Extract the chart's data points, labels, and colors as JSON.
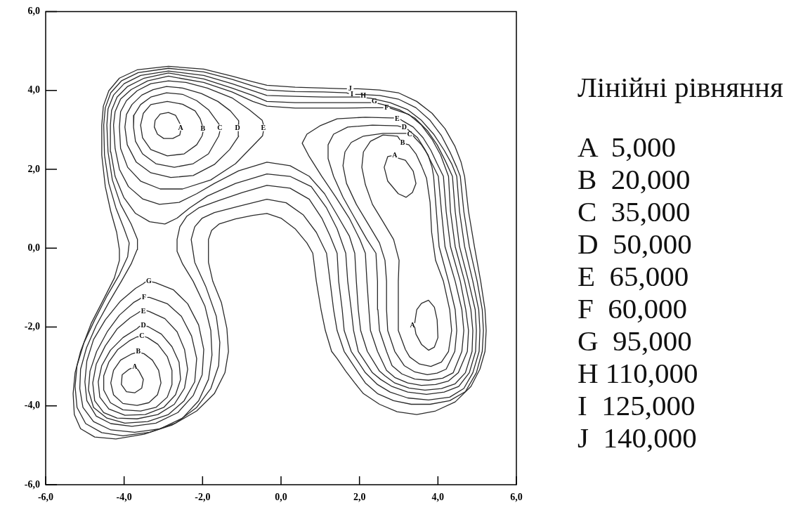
{
  "chart_data": {
    "type": "line",
    "marker": "none",
    "line_style": "solid",
    "xlim": [
      -6,
      6
    ],
    "ylim": [
      -6,
      6
    ],
    "xticks": [
      {
        "value": -6,
        "label": "-6,0"
      },
      {
        "value": -4,
        "label": "-4,0"
      },
      {
        "value": -2,
        "label": "-2,0"
      },
      {
        "value": 0,
        "label": "0,0"
      },
      {
        "value": 2,
        "label": "2,0"
      },
      {
        "value": 4,
        "label": "4,0"
      },
      {
        "value": 6,
        "label": "6,0"
      }
    ],
    "yticks": [
      {
        "value": -6,
        "label": "-6,0"
      },
      {
        "value": -4,
        "label": "-4,0"
      },
      {
        "value": -2,
        "label": "-2,0"
      },
      {
        "value": 0,
        "label": "0,0"
      },
      {
        "value": 2,
        "label": "2,0"
      },
      {
        "value": 4,
        "label": "4,0"
      },
      {
        "value": 6,
        "label": "6,0"
      }
    ],
    "series": [
      {
        "color": "#2a2a2a",
        "x": [
          -2.58,
          -2.62,
          -2.69,
          -2.87,
          -3.08,
          -3.21,
          -3.23,
          -3.15,
          -2.99,
          -2.76,
          -2.58,
          -2.56
        ],
        "values": [
          3.16,
          3.24,
          3.37,
          3.44,
          3.4,
          3.24,
          3.07,
          2.89,
          2.78,
          2.78,
          2.87,
          2.97
        ]
      },
      {
        "color": "#2a2a2a",
        "x": [
          -3.66,
          -3.62,
          -3.51,
          -3.55,
          -3.73,
          -3.94,
          -4.07,
          -4.05,
          -3.87,
          -3.82
        ],
        "values": [
          -3.07,
          -3.12,
          -3.33,
          -3.55,
          -3.67,
          -3.64,
          -3.46,
          -3.21,
          -3.07,
          -3.05
        ]
      },
      {
        "color": "#2a2a2a",
        "x": [
          2.99,
          3.17,
          3.37,
          3.44,
          3.35,
          3.19,
          2.99,
          2.72,
          2.63,
          2.72,
          2.81
        ],
        "values": [
          2.28,
          2.23,
          1.95,
          1.64,
          1.41,
          1.29,
          1.38,
          1.7,
          2.05,
          2.32,
          2.34
        ]
      },
      {
        "color": "#2a2a2a",
        "x": [
          3.41,
          3.46,
          3.58,
          3.76,
          3.91,
          3.98,
          4.0,
          3.91,
          3.76,
          3.58,
          3.44,
          3.41
        ],
        "values": [
          -1.89,
          -1.56,
          -1.4,
          -1.32,
          -1.5,
          -1.82,
          -2.27,
          -2.51,
          -2.59,
          -2.44,
          -2.18,
          -2.01
        ]
      },
      {
        "color": "#2a2a2a",
        "x": [
          -2.01,
          -2.06,
          -2.19,
          -2.51,
          -2.9,
          -3.32,
          -3.51,
          -3.58,
          -3.53,
          -3.32,
          -2.9,
          -2.47,
          -2.15,
          -2.01,
          -1.99
        ],
        "values": [
          3.12,
          3.28,
          3.48,
          3.65,
          3.72,
          3.64,
          3.42,
          3.12,
          2.8,
          2.5,
          2.34,
          2.39,
          2.62,
          2.85,
          2.94
        ]
      },
      {
        "color": "#2a2a2a",
        "x": [
          -3.55,
          -3.49,
          -3.28,
          -3.12,
          -3.06,
          -3.15,
          -3.37,
          -3.67,
          -4.03,
          -4.27,
          -4.34,
          -4.27,
          -4.09,
          -3.82,
          -3.73
        ],
        "values": [
          -2.66,
          -2.68,
          -2.84,
          -3.1,
          -3.42,
          -3.72,
          -3.92,
          -3.99,
          -3.94,
          -3.72,
          -3.42,
          -3.1,
          -2.84,
          -2.69,
          -2.66
        ]
      },
      {
        "color": "#2a2a2a",
        "x": [
          3.19,
          3.26,
          3.44,
          3.58,
          3.71,
          3.8,
          3.84,
          3.94,
          4.14,
          4.3,
          4.35,
          4.27,
          4.09,
          3.82,
          3.53,
          3.28,
          3.17,
          2.99,
          2.99,
          3.01,
          2.87,
          2.6,
          2.33,
          2.15,
          2.06,
          2.1,
          2.28,
          2.6,
          2.97,
          3.03
        ],
        "values": [
          2.64,
          2.62,
          2.39,
          2.09,
          1.77,
          1.16,
          0.4,
          -0.31,
          -0.84,
          -1.56,
          -2.09,
          -2.62,
          -2.89,
          -3.0,
          -2.94,
          -2.76,
          -2.57,
          -2.09,
          -0.84,
          -0.31,
          0.22,
          0.67,
          1.11,
          1.61,
          2.05,
          2.44,
          2.71,
          2.87,
          2.84,
          2.75
        ]
      },
      {
        "color": "#2a2a2a",
        "x": [
          -1.58,
          -1.65,
          -1.85,
          -2.15,
          -2.51,
          -2.92,
          -3.32,
          -3.58,
          -3.75,
          -3.76,
          -3.71,
          -3.53,
          -3.19,
          -2.72,
          -2.24,
          -1.85,
          -1.59,
          -1.56
        ],
        "values": [
          3.14,
          3.24,
          3.51,
          3.74,
          3.9,
          3.94,
          3.83,
          3.64,
          3.37,
          3.07,
          2.71,
          2.39,
          2.14,
          2.05,
          2.14,
          2.39,
          2.84,
          2.96
        ]
      },
      {
        "color": "#2a2a2a",
        "x": [
          -3.46,
          -3.4,
          -3.14,
          -2.9,
          -2.78,
          -2.78,
          -2.9,
          -3.19,
          -3.58,
          -4.03,
          -4.35,
          -4.52,
          -4.52,
          -4.39,
          -4.16,
          -3.85,
          -3.67,
          -3.64
        ],
        "values": [
          -2.25,
          -2.27,
          -2.44,
          -2.75,
          -3.1,
          -3.46,
          -3.78,
          -4.04,
          -4.13,
          -4.1,
          -3.92,
          -3.6,
          -3.24,
          -2.89,
          -2.57,
          -2.34,
          -2.25,
          -2.25
        ]
      },
      {
        "color": "#2a2a2a",
        "x": [
          3.37,
          3.41,
          3.58,
          3.75,
          3.85,
          3.89,
          3.96,
          4.03,
          4.27,
          4.44,
          4.48,
          4.43,
          4.21,
          3.98,
          3.73,
          3.41,
          3.14,
          2.9,
          2.72,
          2.69,
          2.69,
          2.65,
          2.51,
          2.24,
          1.92,
          1.67,
          1.58,
          1.63,
          1.79,
          2.1,
          2.6,
          3.15,
          3.19
        ],
        "values": [
          2.85,
          2.8,
          2.62,
          2.36,
          2.05,
          1.82,
          0.93,
          0.04,
          -0.84,
          -1.56,
          -2.09,
          -2.62,
          -3.07,
          -3.17,
          -3.21,
          -3.14,
          -2.98,
          -2.62,
          -2.09,
          -1.56,
          -0.84,
          -0.31,
          0.13,
          0.58,
          1.11,
          1.64,
          2.09,
          2.44,
          2.68,
          2.84,
          2.91,
          2.91,
          2.91
        ]
      },
      {
        "color": "#2a2a2a",
        "x": [
          -1.09,
          -1.08,
          -1.29,
          -1.61,
          -2.03,
          -2.51,
          -2.92,
          -3.26,
          -3.55,
          -3.8,
          -3.94,
          -3.98,
          -3.92,
          -3.69,
          -3.32,
          -2.81,
          -2.24,
          -1.7,
          -1.31,
          -1.08,
          -1.09
        ],
        "values": [
          3.14,
          3.23,
          3.48,
          3.72,
          3.92,
          4.06,
          4.1,
          4.02,
          3.88,
          3.64,
          3.39,
          3.07,
          2.62,
          2.18,
          1.91,
          1.79,
          1.84,
          2.12,
          2.5,
          2.84,
          2.96
        ]
      },
      {
        "color": "#2a2a2a",
        "x": [
          -3.42,
          -3.37,
          -3.05,
          -2.78,
          -2.6,
          -2.56,
          -2.69,
          -2.99,
          -3.46,
          -3.98,
          -4.39,
          -4.62,
          -4.66,
          -4.57,
          -4.35,
          -4.03,
          -3.67,
          -3.6
        ],
        "values": [
          -1.98,
          -2.0,
          -2.18,
          -2.5,
          -2.89,
          -3.33,
          -3.72,
          -4.04,
          -4.22,
          -4.24,
          -4.08,
          -3.78,
          -3.39,
          -2.98,
          -2.59,
          -2.27,
          -2.04,
          -1.98
        ]
      },
      {
        "color": "#2a2a2a",
        "x": [
          3.23,
          3.48,
          3.67,
          3.85,
          4.01,
          4.09,
          4.18,
          4.44,
          4.61,
          4.66,
          4.61,
          4.39,
          4.12,
          3.76,
          3.41,
          3.08,
          2.83,
          2.69,
          2.51,
          2.47,
          2.46,
          2.42,
          2.19,
          1.88,
          1.58,
          1.34,
          1.2,
          1.2,
          1.34,
          1.7,
          2.33,
          2.97,
          3.05
        ],
        "values": [
          3.01,
          2.8,
          2.5,
          2.14,
          1.82,
          0.93,
          0.04,
          -0.84,
          -1.56,
          -2.09,
          -2.62,
          -3.16,
          -3.3,
          -3.35,
          -3.32,
          -3.19,
          -2.98,
          -2.62,
          -2.09,
          -1.56,
          -0.84,
          -0.13,
          0.22,
          0.76,
          1.29,
          1.82,
          2.27,
          2.62,
          2.89,
          3.07,
          3.12,
          3.1,
          3.08
        ]
      },
      {
        "color": "#2a2a2a",
        "x": [
          -0.45,
          -0.48,
          -0.81,
          -1.25,
          -1.88,
          -2.42,
          -2.87,
          -3.32,
          -3.67,
          -3.94,
          -4.09,
          -4.12,
          -4.09,
          -3.91,
          -3.58,
          -3.08,
          -2.51,
          -1.79,
          -1.16,
          -0.72,
          -0.47,
          -0.45
        ],
        "values": [
          3.14,
          3.24,
          3.51,
          3.81,
          4.06,
          4.2,
          4.24,
          4.17,
          3.99,
          3.74,
          3.46,
          3.07,
          2.53,
          2.05,
          1.7,
          1.5,
          1.5,
          1.73,
          2.14,
          2.59,
          2.85,
          2.96
        ]
      },
      {
        "color": "#2a2a2a",
        "x": [
          -3.42,
          -3.35,
          -2.96,
          -2.65,
          -2.46,
          -2.38,
          -2.46,
          -2.72,
          -3.14,
          -3.67,
          -4.18,
          -4.52,
          -4.75,
          -4.8,
          -4.71,
          -4.48,
          -4.18,
          -3.85,
          -3.64,
          -3.6
        ],
        "values": [
          -1.59,
          -1.61,
          -1.79,
          -2.12,
          -2.57,
          -3.07,
          -3.55,
          -3.96,
          -4.22,
          -4.33,
          -4.31,
          -4.17,
          -3.87,
          -3.42,
          -2.94,
          -2.48,
          -2.05,
          -1.77,
          -1.64,
          -1.61
        ]
      },
      {
        "color": "#2a2a2a",
        "x": [
          3.05,
          3.08,
          3.37,
          3.62,
          3.82,
          3.98,
          4.14,
          4.21,
          4.32,
          4.57,
          4.71,
          4.78,
          4.75,
          4.52,
          4.27,
          3.94,
          3.58,
          3.23,
          2.9,
          2.69,
          2.46,
          2.28,
          2.24,
          2.19,
          2.15,
          2.01,
          1.74,
          1.4,
          1.04,
          0.72,
          0.54,
          0.66,
          0.99,
          1.43,
          2.15,
          2.81,
          2.87
        ],
        "values": [
          3.26,
          3.24,
          3.07,
          2.8,
          2.48,
          2.14,
          1.82,
          0.93,
          0.04,
          -0.84,
          -1.56,
          -2.09,
          -2.62,
          -3.16,
          -3.37,
          -3.46,
          -3.48,
          -3.42,
          -3.28,
          -3.1,
          -2.62,
          -2.09,
          -1.56,
          -0.84,
          -0.13,
          0.22,
          0.76,
          1.29,
          1.82,
          2.32,
          2.66,
          2.89,
          3.1,
          3.28,
          3.32,
          3.3,
          3.3
        ]
      },
      {
        "color": "#2a2a2a",
        "x": [
          2.78,
          2.9,
          3.26,
          3.58,
          3.85,
          4.07,
          4.27,
          4.32,
          4.44,
          4.68,
          4.84,
          4.89,
          4.87,
          4.7,
          4.44,
          4.09,
          3.67,
          3.26,
          2.9,
          2.65,
          2.51,
          2.2,
          2.03,
          1.97,
          1.92,
          1.88,
          1.74,
          1.43,
          1.11,
          0.72,
          0.23,
          -0.36,
          -1.08,
          -1.7,
          -2.15,
          -2.6,
          -3.1,
          -3.53,
          -3.89,
          -4.12,
          -4.23,
          -4.27,
          -4.23,
          -4.09,
          -3.82,
          -3.4,
          -2.87,
          -1.97,
          -1.25,
          -0.72,
          -0.36,
          0.36,
          1.08,
          1.61,
          2.15,
          2.53,
          2.6
        ],
        "values": [
          3.55,
          3.51,
          3.39,
          3.12,
          2.76,
          2.36,
          1.82,
          0.93,
          0.04,
          -0.84,
          -1.56,
          -2.09,
          -2.62,
          -3.16,
          -3.44,
          -3.56,
          -3.6,
          -3.55,
          -3.42,
          -3.24,
          -3.12,
          -2.62,
          -2.09,
          -1.56,
          -0.84,
          -0.13,
          0.31,
          0.84,
          1.38,
          1.82,
          2.09,
          2.18,
          1.96,
          1.64,
          1.38,
          1.16,
          1.11,
          1.25,
          1.56,
          2.0,
          2.53,
          3.12,
          3.46,
          3.78,
          4.02,
          4.24,
          4.36,
          4.2,
          3.96,
          3.72,
          3.6,
          3.55,
          3.55,
          3.55,
          3.56,
          3.56,
          3.56
        ]
      },
      {
        "color": "#2a2a2a",
        "x": [
          -3.4,
          -3.35,
          -2.9,
          -2.54,
          -2.28,
          -2.15,
          -2.2,
          -2.47,
          -2.87,
          -3.4,
          -3.98,
          -4.44,
          -4.78,
          -4.91,
          -4.87,
          -4.7,
          -4.43,
          -4.12,
          -3.76,
          -3.6,
          -3.58
        ],
        "values": [
          -1.25,
          -1.25,
          -1.41,
          -1.73,
          -2.23,
          -2.8,
          -3.39,
          -3.87,
          -4.22,
          -4.4,
          -4.44,
          -4.31,
          -4.04,
          -3.6,
          -3.12,
          -2.62,
          -2.12,
          -1.7,
          -1.38,
          -1.29,
          -1.27
        ]
      },
      {
        "color": "#2a2a2a",
        "x": [
          2.47,
          2.6,
          3.01,
          3.41,
          3.73,
          3.98,
          4.19,
          4.37,
          4.44,
          4.55,
          4.78,
          4.95,
          4.98,
          4.96,
          4.8,
          4.53,
          4.16,
          3.71,
          3.23,
          2.83,
          2.54,
          2.33,
          1.97,
          1.85,
          1.79,
          1.7,
          1.65,
          1.43,
          1.16,
          0.77,
          0.23,
          -0.36,
          -1.16,
          -1.88,
          -2.33,
          -2.65,
          -2.96,
          -3.35,
          -3.71,
          -4.01,
          -4.23,
          -4.34,
          -4.35,
          -4.32,
          -4.18,
          -3.91,
          -3.49,
          -2.87,
          -1.97,
          -1.25,
          -0.72,
          -0.36,
          0.36,
          1.08,
          1.61,
          2.17,
          2.29
        ],
        "values": [
          3.67,
          3.64,
          3.51,
          3.3,
          2.98,
          2.62,
          2.21,
          1.82,
          0.93,
          0.04,
          -0.84,
          -1.56,
          -2.09,
          -2.62,
          -3.16,
          -3.51,
          -3.65,
          -3.71,
          -3.65,
          -3.51,
          -3.33,
          -3.16,
          -2.62,
          -2.09,
          -1.56,
          -0.84,
          -0.13,
          0.49,
          1.02,
          1.56,
          1.82,
          1.88,
          1.64,
          1.32,
          1.02,
          0.76,
          0.61,
          0.67,
          0.88,
          1.29,
          1.82,
          2.44,
          3.12,
          3.49,
          3.83,
          4.1,
          4.31,
          4.44,
          4.29,
          4.06,
          3.87,
          3.72,
          3.69,
          3.69,
          3.69,
          3.69,
          3.69
        ]
      },
      {
        "color": "#2a2a2a",
        "x": [
          -3.28,
          -3.19,
          -2.74,
          -2.38,
          -2.1,
          -1.97,
          -2.01,
          -2.24,
          -2.63,
          -3.19,
          -3.8,
          -4.34,
          -4.71,
          -4.95,
          -5.0,
          -4.95,
          -4.78,
          -4.48,
          -4.09,
          -3.71,
          -3.51,
          -3.46
        ],
        "values": [
          -0.86,
          -0.88,
          -1.06,
          -1.41,
          -1.95,
          -2.57,
          -3.21,
          -3.74,
          -4.17,
          -4.44,
          -4.52,
          -4.45,
          -4.26,
          -3.87,
          -3.39,
          -2.86,
          -2.32,
          -1.82,
          -1.34,
          -1.02,
          -0.9,
          -0.86
        ]
      },
      {
        "color": "#2a2a2a",
        "x": [
          2.19,
          2.29,
          2.78,
          3.23,
          3.58,
          3.89,
          4.16,
          4.35,
          4.48,
          4.55,
          4.68,
          4.89,
          5.04,
          5.07,
          5.05,
          4.89,
          4.66,
          4.3,
          3.76,
          3.23,
          2.78,
          2.46,
          2.15,
          1.79,
          1.61,
          1.56,
          1.47,
          1.43,
          1.25,
          1.04,
          0.72,
          0.23,
          -0.36,
          -0.99,
          -1.61,
          -2.1,
          -2.4,
          -2.58,
          -2.65,
          -2.65,
          -2.51,
          -2.24,
          -1.94,
          -1.79,
          -1.76,
          -1.85,
          -2.1,
          -2.51,
          -3.08,
          -3.73,
          -4.34,
          -4.78,
          -5.05,
          -5.13,
          -5.11,
          -4.96,
          -4.71,
          -4.39,
          -4.07,
          -3.82,
          -3.67,
          -3.66,
          -3.82,
          -4.09,
          -4.3,
          -4.41,
          -4.44,
          -4.41,
          -4.27,
          -4.0,
          -3.58,
          -2.87,
          -1.97,
          -1.25,
          -0.72,
          -0.36,
          0.36,
          1.08,
          1.43,
          1.9,
          2.01
        ],
        "values": [
          3.81,
          3.8,
          3.69,
          3.51,
          3.24,
          2.89,
          2.48,
          2.14,
          1.82,
          0.93,
          0.04,
          -0.84,
          -1.56,
          -2.09,
          -2.62,
          -3.16,
          -3.56,
          -3.78,
          -3.85,
          -3.8,
          -3.65,
          -3.46,
          -3.16,
          -2.62,
          -2.09,
          -1.56,
          -0.84,
          -0.13,
          0.31,
          0.76,
          1.24,
          1.52,
          1.59,
          1.41,
          1.2,
          1.02,
          0.81,
          0.54,
          0.22,
          -0.08,
          -0.4,
          -0.84,
          -1.47,
          -2.09,
          -2.71,
          -3.33,
          -3.87,
          -4.31,
          -4.58,
          -4.67,
          -4.61,
          -4.4,
          -4.04,
          -3.56,
          -3.07,
          -2.53,
          -1.96,
          -1.38,
          -0.84,
          -0.4,
          -0.04,
          0.22,
          0.61,
          1.11,
          1.73,
          2.44,
          3.12,
          3.53,
          3.88,
          4.17,
          4.38,
          4.49,
          4.38,
          4.17,
          3.99,
          3.87,
          3.85,
          3.83,
          3.83,
          3.83,
          3.83
        ]
      },
      {
        "color": "#2a2a2a",
        "x": [
          1.9,
          2.01,
          2.51,
          2.99,
          3.44,
          3.8,
          4.09,
          4.32,
          4.48,
          4.57,
          4.66,
          4.8,
          5.0,
          5.13,
          5.16,
          5.13,
          4.98,
          4.7,
          4.3,
          3.8,
          3.32,
          2.87,
          2.46,
          2.15,
          1.97,
          1.61,
          1.43,
          1.34,
          1.25,
          1.16,
          0.9,
          0.57,
          0.13,
          -0.36,
          -1.08,
          -1.7,
          -2.01,
          -2.2,
          -2.29,
          -2.2,
          -1.92,
          -1.65,
          -1.56,
          -1.59,
          -1.79,
          -2.15,
          -2.69,
          -3.35,
          -4.03,
          -4.57,
          -4.98,
          -5.2,
          -5.25,
          -5.2,
          -5.02,
          -4.75,
          -4.43,
          -4.12,
          -3.91,
          -3.87,
          -4.0,
          -4.21,
          -4.39,
          -4.5,
          -4.52,
          -4.48,
          -4.34,
          -4.07,
          -3.64,
          -2.87,
          -1.97,
          -1.25,
          -0.72,
          -0.36,
          0.36,
          1.08,
          1.67,
          1.72
        ],
        "values": [
          3.9,
          3.9,
          3.87,
          3.78,
          3.56,
          3.24,
          2.85,
          2.41,
          2.05,
          1.82,
          0.93,
          0.04,
          -0.84,
          -1.56,
          -2.09,
          -2.62,
          -3.16,
          -3.64,
          -3.87,
          -3.96,
          -3.96,
          -3.87,
          -3.69,
          -3.42,
          -3.16,
          -2.62,
          -2.09,
          -1.56,
          -0.84,
          -0.13,
          0.4,
          0.84,
          1.15,
          1.24,
          1.06,
          0.9,
          0.76,
          0.54,
          0.22,
          -0.36,
          -0.97,
          -1.73,
          -2.39,
          -2.98,
          -3.56,
          -4.04,
          -4.44,
          -4.67,
          -4.76,
          -4.68,
          -4.45,
          -4.04,
          -3.51,
          -2.98,
          -2.39,
          -1.82,
          -1.2,
          -0.67,
          -0.22,
          0.13,
          0.49,
          1.02,
          1.64,
          2.36,
          3.12,
          3.56,
          3.94,
          4.24,
          4.45,
          4.56,
          4.47,
          4.28,
          4.11,
          4.01,
          3.97,
          3.96,
          3.94,
          3.92
        ]
      },
      {
        "color": "#2a2a2a",
        "x": [
          1.86,
          1.97,
          2.51,
          2.99,
          3.46,
          3.85,
          4.18,
          4.43,
          4.59,
          4.68,
          4.78,
          4.93,
          5.09,
          5.2,
          5.23,
          5.2,
          5.07,
          4.84,
          4.44,
          3.94,
          3.46,
          2.96,
          2.51,
          2.1,
          1.88,
          1.65,
          1.43,
          1.29,
          1.13,
          1.02,
          0.9,
          0.81,
          0.66,
          0.36,
          0.0,
          -0.36,
          -0.72,
          -1.16,
          -1.58,
          -1.77,
          -1.85,
          -1.85,
          -1.74,
          -1.52,
          -1.38,
          -1.34,
          -1.43,
          -1.7,
          -2.15,
          -2.78,
          -3.49,
          -4.21,
          -4.75,
          -5.11,
          -5.27,
          -5.3,
          -5.25,
          -5.11,
          -4.84,
          -4.52,
          -4.25,
          -4.12,
          -4.12,
          -4.19,
          -4.34,
          -4.48,
          -4.57,
          -4.57,
          -4.53,
          -4.39,
          -4.12,
          -3.67,
          -2.87,
          -1.97,
          -1.25,
          -0.72,
          -0.36,
          0.36,
          1.08,
          1.61,
          1.67
        ],
        "values": [
          4.04,
          4.04,
          4.01,
          3.94,
          3.72,
          3.42,
          3.03,
          2.59,
          2.18,
          1.82,
          0.93,
          0.04,
          -0.84,
          -1.56,
          -2.09,
          -2.62,
          -3.07,
          -3.51,
          -3.9,
          -4.13,
          -4.22,
          -4.15,
          -3.96,
          -3.69,
          -3.42,
          -3.12,
          -2.8,
          -2.62,
          -2.09,
          -1.56,
          -0.84,
          -0.13,
          0.13,
          0.49,
          0.76,
          0.88,
          0.83,
          0.74,
          0.61,
          0.45,
          0.22,
          -0.36,
          -0.84,
          -1.38,
          -2.04,
          -2.62,
          -3.16,
          -3.69,
          -4.13,
          -4.49,
          -4.72,
          -4.84,
          -4.79,
          -4.58,
          -4.22,
          -3.69,
          -3.16,
          -2.62,
          -1.91,
          -1.29,
          -0.76,
          -0.31,
          -0.04,
          0.4,
          0.93,
          1.56,
          2.36,
          3.12,
          3.6,
          3.99,
          4.31,
          4.52,
          4.61,
          4.54,
          4.36,
          4.22,
          4.13,
          4.08,
          4.06,
          4.04,
          4.04
        ]
      }
    ],
    "annotations": [
      "Лінійні рівняння",
      "A  5,000",
      "B  20,000",
      "C  35,000",
      "D  50,000",
      "E  65,000",
      "F  60,000",
      "G  95,000",
      "H 110,000",
      "I  125,000",
      "J  140,000",
      {
        "text": "A",
        "x": -2.56,
        "y": 3.05
      },
      {
        "text": "B",
        "x": -1.99,
        "y": 3.03
      },
      {
        "text": "C",
        "x": -1.56,
        "y": 3.05
      },
      {
        "text": "D",
        "x": -1.11,
        "y": 3.05
      },
      {
        "text": "E",
        "x": -0.45,
        "y": 3.05
      },
      {
        "text": "J",
        "x": 1.76,
        "y": 4.04
      },
      {
        "text": "I",
        "x": 1.81,
        "y": 3.9
      },
      {
        "text": "H",
        "x": 2.1,
        "y": 3.87
      },
      {
        "text": "G",
        "x": 2.38,
        "y": 3.72
      },
      {
        "text": "F",
        "x": 2.69,
        "y": 3.56
      },
      {
        "text": "E",
        "x": 2.96,
        "y": 3.28
      },
      {
        "text": "D",
        "x": 3.14,
        "y": 3.07
      },
      {
        "text": "C",
        "x": 3.28,
        "y": 2.89
      },
      {
        "text": "B",
        "x": 3.1,
        "y": 2.68
      },
      {
        "text": "A",
        "x": 2.9,
        "y": 2.36
      },
      {
        "text": "A",
        "x": 3.35,
        "y": -1.95
      },
      {
        "text": "G",
        "x": -3.37,
        "y": -0.84
      },
      {
        "text": "F",
        "x": -3.49,
        "y": -1.25
      },
      {
        "text": "E",
        "x": -3.51,
        "y": -1.59
      },
      {
        "text": "D",
        "x": -3.51,
        "y": -1.96
      },
      {
        "text": "C",
        "x": -3.55,
        "y": -2.23
      },
      {
        "text": "B",
        "x": -3.64,
        "y": -2.62
      },
      {
        "text": "A",
        "x": -3.73,
        "y": -3.0
      }
    ]
  }
}
